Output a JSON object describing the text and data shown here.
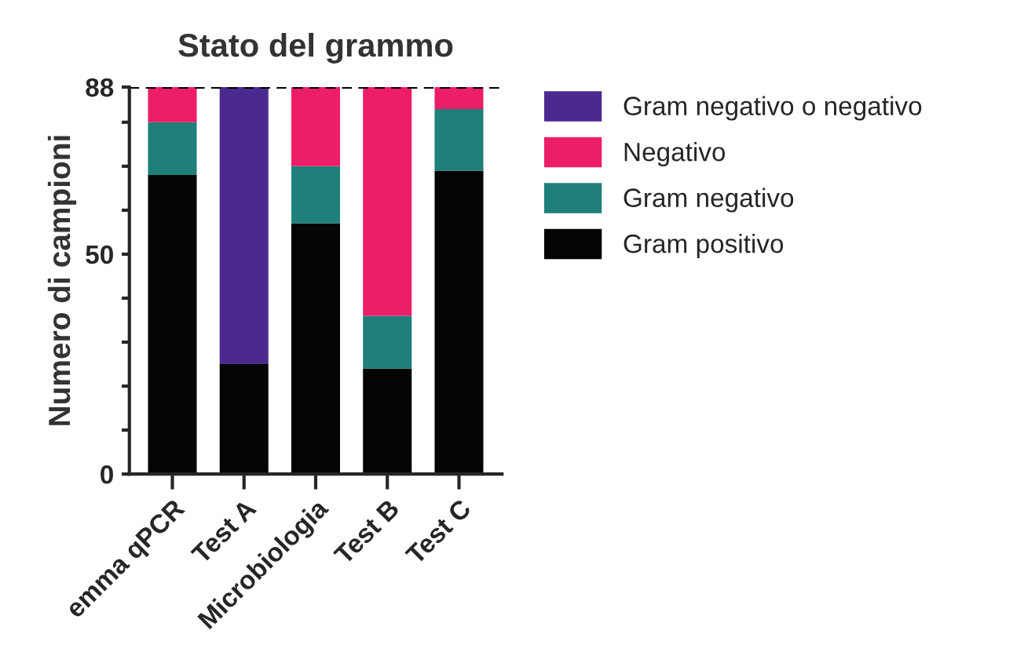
{
  "chart_data": {
    "type": "bar",
    "title": "Stato del grammo",
    "ylabel": "Numero di campioni",
    "stacked": true,
    "categories": [
      "emma qPCR",
      "Test A",
      "Microbiologia",
      "Test B",
      "Test C"
    ],
    "series": [
      {
        "name": "Gram positivo",
        "color": "#050505",
        "values": [
          68,
          25,
          57,
          24,
          69
        ]
      },
      {
        "name": "Gram negativo",
        "color": "#1f7f7a",
        "values": [
          12,
          null,
          13,
          12,
          14
        ]
      },
      {
        "name": "Negativo",
        "color": "#ec1e67",
        "values": [
          8,
          null,
          18,
          52,
          5
        ]
      },
      {
        "name": "Gram negativo o negativo",
        "color": "#4b2a8f",
        "values": [
          null,
          63,
          null,
          null,
          null
        ]
      }
    ],
    "ylim": [
      0,
      88
    ],
    "yticks": [
      0,
      {
        "value": 10,
        "label": null
      },
      {
        "value": 20,
        "label": null
      },
      {
        "value": 30,
        "label": null
      },
      {
        "value": 40,
        "label": null
      },
      50,
      {
        "value": 60,
        "label": null
      },
      {
        "value": 70,
        "label": null
      },
      {
        "value": 80,
        "label": null
      },
      88
    ],
    "ref_lines": [
      {
        "axis": "y",
        "value": 88,
        "label": null,
        "color": "#000000",
        "line_style": "dashed"
      }
    ],
    "legend": "right",
    "grid": false
  }
}
